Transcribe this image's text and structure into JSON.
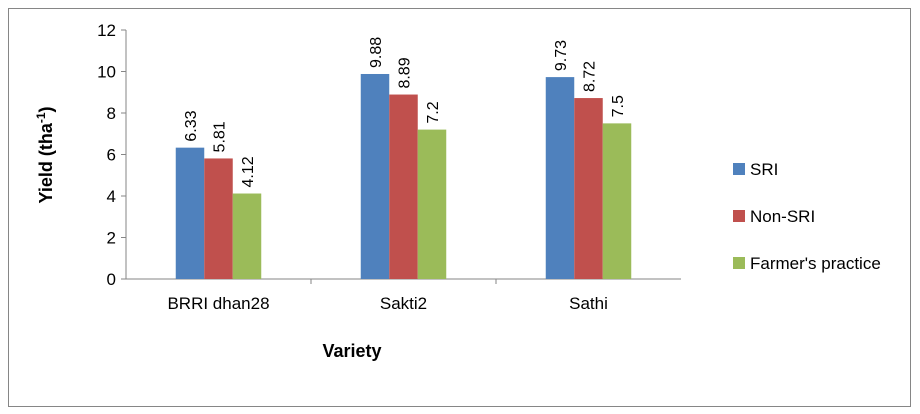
{
  "chart_data": {
    "type": "bar",
    "y_label_parts": [
      "Yield (tha",
      "-1",
      ")"
    ],
    "x_label": "Variety",
    "categories": [
      "BRRI dhan28",
      "Sakti2",
      "Sathi"
    ],
    "series": [
      {
        "name": "SRI",
        "color": "#4f81bd",
        "values": [
          6.33,
          9.88,
          9.73
        ]
      },
      {
        "name": "Non-SRI",
        "color": "#c0504d",
        "values": [
          5.81,
          8.89,
          8.72
        ]
      },
      {
        "name": "Farmer's practice",
        "color": "#9bbb59",
        "values": [
          4.12,
          7.2,
          7.5
        ]
      }
    ],
    "ylim": [
      0,
      12
    ],
    "yticks": [
      0,
      2,
      4,
      6,
      8,
      10,
      12
    ],
    "grid": false,
    "legend": "right"
  }
}
